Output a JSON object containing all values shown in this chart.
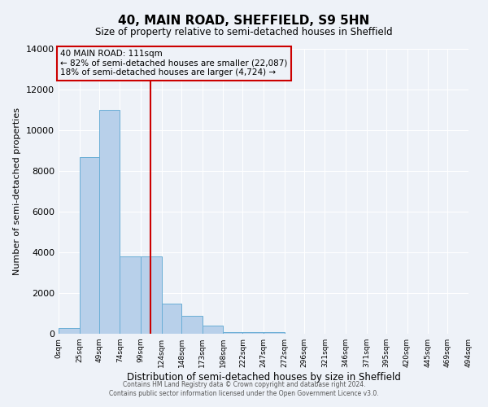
{
  "title": "40, MAIN ROAD, SHEFFIELD, S9 5HN",
  "subtitle": "Size of property relative to semi-detached houses in Sheffield",
  "xlabel": "Distribution of semi-detached houses by size in Sheffield",
  "ylabel": "Number of semi-detached properties",
  "bar_edges": [
    0,
    25,
    49,
    74,
    99,
    124,
    148,
    173,
    198,
    222,
    247,
    272,
    296,
    321,
    346,
    371,
    395,
    420,
    445,
    469,
    494
  ],
  "bar_heights": [
    300,
    8700,
    11000,
    3800,
    3800,
    1500,
    900,
    400,
    100,
    100,
    100,
    0,
    0,
    0,
    0,
    0,
    0,
    0,
    0,
    0
  ],
  "tick_labels": [
    "0sqm",
    "25sqm",
    "49sqm",
    "74sqm",
    "99sqm",
    "124sqm",
    "148sqm",
    "173sqm",
    "198sqm",
    "222sqm",
    "247sqm",
    "272sqm",
    "296sqm",
    "321sqm",
    "346sqm",
    "371sqm",
    "395sqm",
    "420sqm",
    "445sqm",
    "469sqm",
    "494sqm"
  ],
  "bar_color": "#b8d0ea",
  "bar_edge_color": "#6aaed6",
  "vline_x": 111,
  "vline_color": "#cc0000",
  "annotation_box_title": "40 MAIN ROAD: 111sqm",
  "annotation_line1": "← 82% of semi-detached houses are smaller (22,087)",
  "annotation_line2": "18% of semi-detached houses are larger (4,724) →",
  "annotation_box_color": "#cc0000",
  "ylim": [
    0,
    14000
  ],
  "yticks": [
    0,
    2000,
    4000,
    6000,
    8000,
    10000,
    12000,
    14000
  ],
  "bg_color": "#eef2f8",
  "grid_color": "#ffffff",
  "footer1": "Contains HM Land Registry data © Crown copyright and database right 2024.",
  "footer2": "Contains public sector information licensed under the Open Government Licence v3.0."
}
